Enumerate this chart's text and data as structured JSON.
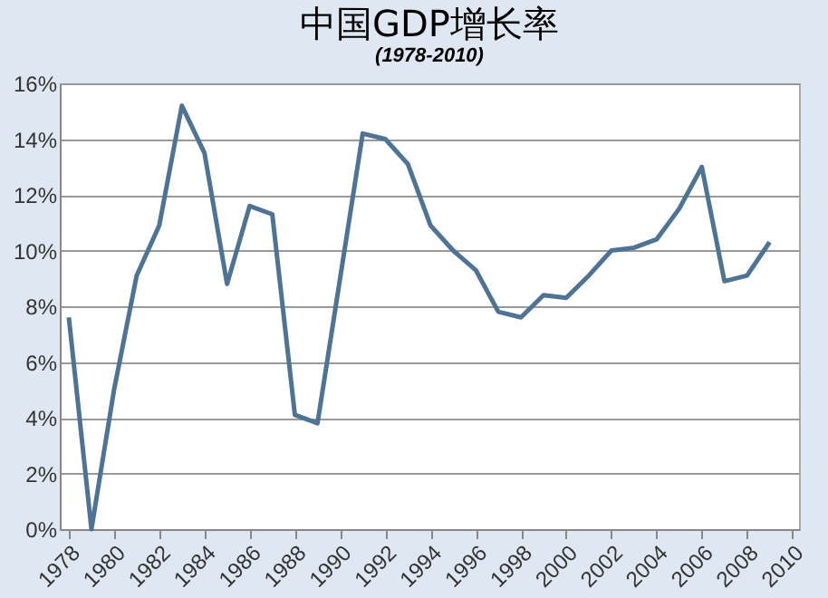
{
  "chart_data": {
    "type": "line",
    "title": "中国GDP增长率",
    "subtitle": "(1978-2010)",
    "x": [
      1978,
      1979,
      1980,
      1981,
      1982,
      1983,
      1984,
      1985,
      1986,
      1987,
      1988,
      1989,
      1990,
      1991,
      1992,
      1993,
      1994,
      1995,
      1996,
      1997,
      1998,
      1999,
      2000,
      2001,
      2002,
      2003,
      2004,
      2005,
      2006,
      2007,
      2008,
      2009
    ],
    "series": [
      {
        "color": "#4f7394",
        "values": [
          7.6,
          0,
          5.0,
          9.1,
          10.9,
          15.2,
          13.5,
          8.8,
          11.6,
          11.3,
          4.1,
          3.8,
          9.0,
          14.2,
          14.0,
          13.1,
          10.9,
          10.0,
          9.3,
          7.8,
          7.6,
          8.4,
          8.3,
          9.1,
          10.0,
          10.1,
          10.4,
          11.5,
          13.0,
          8.9,
          9.1,
          10.3
        ]
      }
    ],
    "xlim": [
      1977.6,
      2010.3
    ],
    "xticks": [
      1978,
      1980,
      1982,
      1984,
      1986,
      1988,
      1990,
      1992,
      1994,
      1996,
      1998,
      2000,
      2002,
      2004,
      2006,
      2008,
      2010
    ],
    "ylim": [
      0,
      16
    ],
    "yticks": [
      {
        "value": 0,
        "label": "0%"
      },
      {
        "value": 2,
        "label": "2%"
      },
      {
        "value": 4,
        "label": "4%"
      },
      {
        "value": 6,
        "label": "6%"
      },
      {
        "value": 8,
        "label": "8%"
      },
      {
        "value": 10,
        "label": "10%"
      },
      {
        "value": 12,
        "label": "12%"
      },
      {
        "value": 14,
        "label": "14%"
      },
      {
        "value": 16,
        "label": "16%"
      }
    ],
    "grid": "y",
    "marker": "none",
    "line_style": "solid",
    "legend": false
  }
}
